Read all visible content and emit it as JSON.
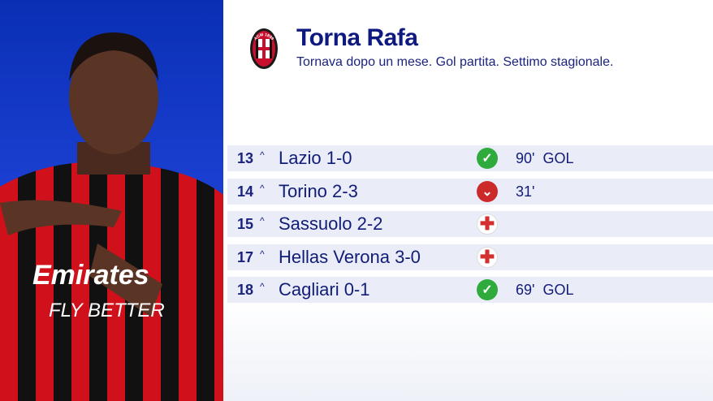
{
  "header": {
    "title": "Torna Rafa",
    "subtitle": "Tornava dopo un mese. Gol partita. Settimo stagionale.",
    "crest_text": "ACM 1899"
  },
  "colors": {
    "accent": "#0f1a80",
    "panel": "#1a3fd0",
    "win": "#2eab3c",
    "loss": "#cc2a2a",
    "injury": "#d32f2f"
  },
  "matches": [
    {
      "round": "13",
      "match": "Lazio 1-0",
      "icon": "check-icon",
      "note": "90'  GOL"
    },
    {
      "round": "14",
      "match": "Torino 2-3",
      "icon": "chevron-down-icon",
      "note": "31'"
    },
    {
      "round": "15",
      "match": "Sassuolo 2-2",
      "icon": "injury-cross-icon",
      "note": ""
    },
    {
      "round": "17",
      "match": "Hellas Verona 3-0",
      "icon": "injury-cross-icon",
      "note": ""
    },
    {
      "round": "18",
      "match": "Cagliari 0-1",
      "icon": "check-icon",
      "note": "69'  GOL"
    }
  ],
  "caret": "^"
}
